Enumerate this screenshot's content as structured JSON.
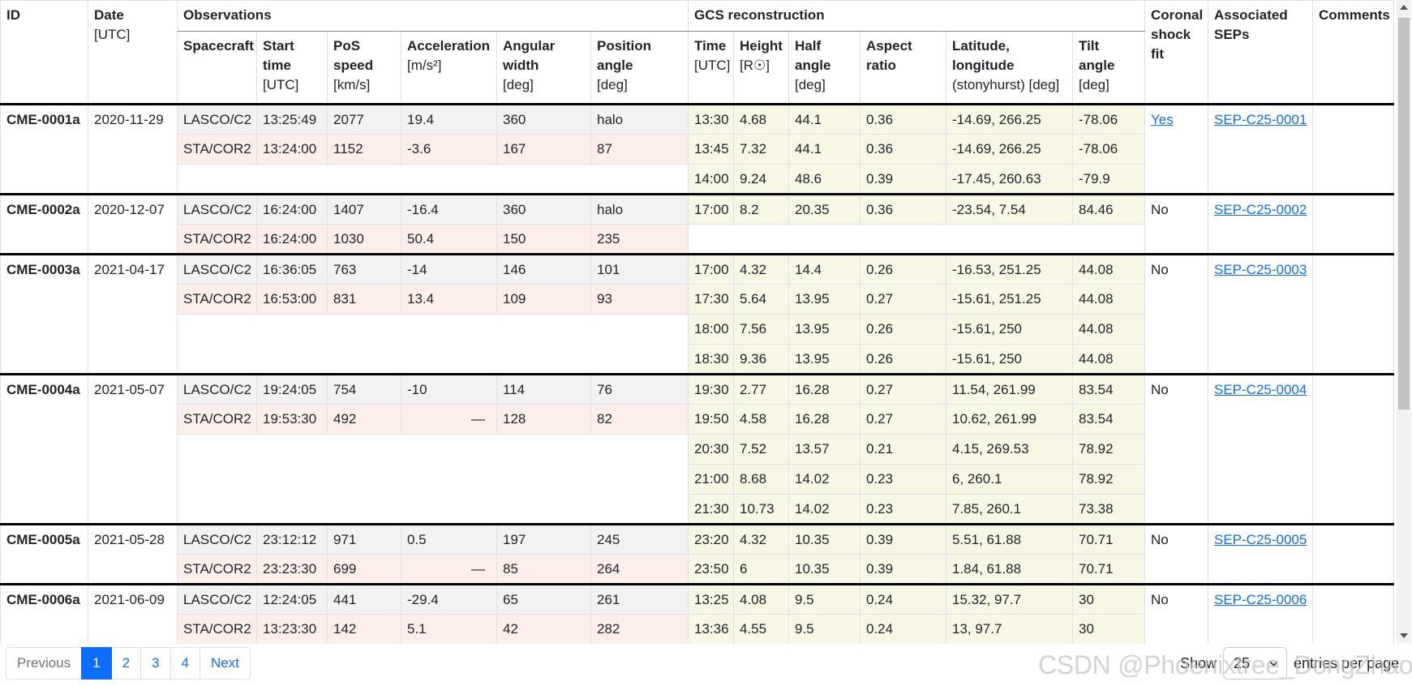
{
  "header": {
    "id_label": "ID",
    "date": {
      "label": "Date",
      "unit": "[UTC]"
    },
    "observations_group": "Observations",
    "gcs_group": "GCS reconstruction",
    "obs_columns": [
      {
        "label": "Spacecraft",
        "unit": ""
      },
      {
        "label": "Start time",
        "unit": "[UTC]"
      },
      {
        "label": "PoS speed",
        "unit": "[km/s]"
      },
      {
        "label": "Acceleration",
        "unit": "[m/s²]"
      },
      {
        "label": "Angular width",
        "unit": "[deg]"
      },
      {
        "label": "Position angle",
        "unit": "[deg]"
      }
    ],
    "gcs_columns": [
      {
        "label": "Time",
        "unit": "[UTC]"
      },
      {
        "label": "Height",
        "unit": "[R☉]"
      },
      {
        "label": "Half angle",
        "unit": "[deg]"
      },
      {
        "label": "Aspect ratio",
        "unit": ""
      },
      {
        "label": "Latitude, longitude",
        "unit": "(stonyhurst) [deg]"
      },
      {
        "label": "Tilt angle",
        "unit": "[deg]"
      }
    ],
    "coronal_label": "Coronal shock fit",
    "seps_label": "Associated SEPs",
    "comments_label": "Comments"
  },
  "groups": [
    {
      "id": "CME-0001a",
      "date": "2020-11-29",
      "observations": [
        {
          "spacecraft": "LASCO/C2",
          "start_time": "13:25:49",
          "pos_speed": "2077",
          "acceleration": "19.4",
          "angular_width": "360",
          "position_angle": "halo"
        },
        {
          "spacecraft": "STA/COR2",
          "start_time": "13:24:00",
          "pos_speed": "1152",
          "acceleration": "-3.6",
          "angular_width": "167",
          "position_angle": "87"
        }
      ],
      "gcs": [
        {
          "time": "13:30",
          "height": "4.68",
          "half_angle": "44.1",
          "aspect_ratio": "0.36",
          "lat_lon": "-14.69, 266.25",
          "tilt": "-78.06"
        },
        {
          "time": "13:45",
          "height": "7.32",
          "half_angle": "44.1",
          "aspect_ratio": "0.36",
          "lat_lon": "-14.69, 266.25",
          "tilt": "-78.06"
        },
        {
          "time": "14:00",
          "height": "9.24",
          "half_angle": "48.6",
          "aspect_ratio": "0.39",
          "lat_lon": "-17.45, 260.63",
          "tilt": "-79.9"
        }
      ],
      "coronal_shock_fit": "Yes",
      "shock_is_link": true,
      "sep": "SEP-C25-0001",
      "comments": ""
    },
    {
      "id": "CME-0002a",
      "date": "2020-12-07",
      "observations": [
        {
          "spacecraft": "LASCO/C2",
          "start_time": "16:24:00",
          "pos_speed": "1407",
          "acceleration": "-16.4",
          "angular_width": "360",
          "position_angle": "halo"
        },
        {
          "spacecraft": "STA/COR2",
          "start_time": "16:24:00",
          "pos_speed": "1030",
          "acceleration": "50.4",
          "angular_width": "150",
          "position_angle": "235"
        }
      ],
      "gcs": [
        {
          "time": "17:00",
          "height": "8.2",
          "half_angle": "20.35",
          "aspect_ratio": "0.36",
          "lat_lon": "-23.54, 7.54",
          "tilt": "84.46"
        }
      ],
      "coronal_shock_fit": "No",
      "shock_is_link": false,
      "sep": "SEP-C25-0002",
      "comments": ""
    },
    {
      "id": "CME-0003a",
      "date": "2021-04-17",
      "observations": [
        {
          "spacecraft": "LASCO/C2",
          "start_time": "16:36:05",
          "pos_speed": "763",
          "acceleration": "-14",
          "angular_width": "146",
          "position_angle": "101"
        },
        {
          "spacecraft": "STA/COR2",
          "start_time": "16:53:00",
          "pos_speed": "831",
          "acceleration": "13.4",
          "angular_width": "109",
          "position_angle": "93"
        }
      ],
      "gcs": [
        {
          "time": "17:00",
          "height": "4.32",
          "half_angle": "14.4",
          "aspect_ratio": "0.26",
          "lat_lon": "-16.53, 251.25",
          "tilt": "44.08"
        },
        {
          "time": "17:30",
          "height": "5.64",
          "half_angle": "13.95",
          "aspect_ratio": "0.27",
          "lat_lon": "-15.61, 251.25",
          "tilt": "44.08"
        },
        {
          "time": "18:00",
          "height": "7.56",
          "half_angle": "13.95",
          "aspect_ratio": "0.26",
          "lat_lon": "-15.61, 250",
          "tilt": "44.08"
        },
        {
          "time": "18:30",
          "height": "9.36",
          "half_angle": "13.95",
          "aspect_ratio": "0.26",
          "lat_lon": "-15.61, 250",
          "tilt": "44.08"
        }
      ],
      "coronal_shock_fit": "No",
      "shock_is_link": false,
      "sep": "SEP-C25-0003",
      "comments": ""
    },
    {
      "id": "CME-0004a",
      "date": "2021-05-07",
      "observations": [
        {
          "spacecraft": "LASCO/C2",
          "start_time": "19:24:05",
          "pos_speed": "754",
          "acceleration": "-10",
          "angular_width": "114",
          "position_angle": "76"
        },
        {
          "spacecraft": "STA/COR2",
          "start_time": "19:53:30",
          "pos_speed": "492",
          "acceleration": "—",
          "angular_width": "128",
          "position_angle": "82"
        }
      ],
      "gcs": [
        {
          "time": "19:30",
          "height": "2.77",
          "half_angle": "16.28",
          "aspect_ratio": "0.27",
          "lat_lon": "11.54, 261.99",
          "tilt": "83.54"
        },
        {
          "time": "19:50",
          "height": "4.58",
          "half_angle": "16.28",
          "aspect_ratio": "0.27",
          "lat_lon": "10.62, 261.99",
          "tilt": "83.54"
        },
        {
          "time": "20:30",
          "height": "7.52",
          "half_angle": "13.57",
          "aspect_ratio": "0.21",
          "lat_lon": "4.15, 269.53",
          "tilt": "78.92"
        },
        {
          "time": "21:00",
          "height": "8.68",
          "half_angle": "14.02",
          "aspect_ratio": "0.23",
          "lat_lon": "6, 260.1",
          "tilt": "78.92"
        },
        {
          "time": "21:30",
          "height": "10.73",
          "half_angle": "14.02",
          "aspect_ratio": "0.23",
          "lat_lon": "7.85, 260.1",
          "tilt": "73.38"
        }
      ],
      "coronal_shock_fit": "No",
      "shock_is_link": false,
      "sep": "SEP-C25-0004",
      "comments": ""
    },
    {
      "id": "CME-0005a",
      "date": "2021-05-28",
      "observations": [
        {
          "spacecraft": "LASCO/C2",
          "start_time": "23:12:12",
          "pos_speed": "971",
          "acceleration": "0.5",
          "angular_width": "197",
          "position_angle": "245"
        },
        {
          "spacecraft": "STA/COR2",
          "start_time": "23:23:30",
          "pos_speed": "699",
          "acceleration": "—",
          "angular_width": "85",
          "position_angle": "264"
        }
      ],
      "gcs": [
        {
          "time": "23:20",
          "height": "4.32",
          "half_angle": "10.35",
          "aspect_ratio": "0.39",
          "lat_lon": "5.51, 61.88",
          "tilt": "70.71"
        },
        {
          "time": "23:50",
          "height": "6",
          "half_angle": "10.35",
          "aspect_ratio": "0.39",
          "lat_lon": "1.84, 61.88",
          "tilt": "70.71"
        }
      ],
      "coronal_shock_fit": "No",
      "shock_is_link": false,
      "sep": "SEP-C25-0005",
      "comments": ""
    },
    {
      "id": "CME-0006a",
      "date": "2021-06-09",
      "observations": [
        {
          "spacecraft": "LASCO/C2",
          "start_time": "12:24:05",
          "pos_speed": "441",
          "acceleration": "-29.4",
          "angular_width": "65",
          "position_angle": "261"
        },
        {
          "spacecraft": "STA/COR2",
          "start_time": "13:23:30",
          "pos_speed": "142",
          "acceleration": "5.1",
          "angular_width": "42",
          "position_angle": "282"
        }
      ],
      "gcs": [
        {
          "time": "13:25",
          "height": "4.08",
          "half_angle": "9.5",
          "aspect_ratio": "0.24",
          "lat_lon": "15.32, 97.7",
          "tilt": "30"
        },
        {
          "time": "13:36",
          "height": "4.55",
          "half_angle": "9.5",
          "aspect_ratio": "0.24",
          "lat_lon": "13, 97.7",
          "tilt": "30"
        }
      ],
      "coronal_shock_fit": "No",
      "shock_is_link": false,
      "sep": "SEP-C25-0006",
      "comments": ""
    }
  ],
  "footer": {
    "pagination": {
      "previous": "Previous",
      "pages": [
        "1",
        "2",
        "3",
        "4"
      ],
      "active": "1",
      "next": "Next"
    },
    "show_label": "Show",
    "page_size": "25",
    "entries_label": "entries per page",
    "watermark": "CSDN @Phoenixtree_DongZhao"
  },
  "colors": {
    "link": "#0d6efd",
    "active_page_bg": "#0d6efd",
    "lasco_row_bg": "#f2f2f2",
    "sta_row_bg": "#fdeeea",
    "gcs_col_bg": "#f7f7e3",
    "group_border": "#000000"
  }
}
